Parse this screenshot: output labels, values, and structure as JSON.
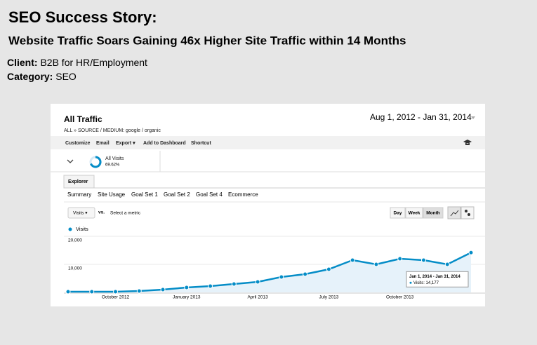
{
  "header": {
    "title": "SEO Success Story:",
    "subtitle": "Website Traffic Soars Gaining 46x Higher Site Traffic within 14 Months"
  },
  "details": [
    {
      "label": "Client:",
      "value": "B2B for HR/Employment"
    },
    {
      "label": "Category:",
      "value": "SEO"
    }
  ],
  "screenshot": {
    "title": "All Traffic",
    "date_range": "Aug 1, 2012 - Jan 31, 2014",
    "breadcrumb": "ALL » SOURCE / MEDIUM: google / organic",
    "toolbar": [
      "Customize",
      "Email",
      "Export ▾",
      "Add to Dashboard",
      "Shortcut"
    ],
    "segment": {
      "name": "All Visits",
      "share": "69.62%"
    },
    "tab": "Explorer",
    "subtabs": [
      "Summary",
      "Site Usage",
      "Goal Set 1",
      "Goal Set 2",
      "Goal Set 4",
      "Ecommerce"
    ],
    "metric": "Visits ▾",
    "vs": "vs.",
    "select_metric": "Select a metric",
    "periods": [
      "Day",
      "Week",
      "Month"
    ]
  },
  "chart_data": {
    "type": "line",
    "categories": [
      null,
      null,
      "October 2012",
      null,
      null,
      "January 2013",
      null,
      null,
      "April 2013",
      null,
      null,
      "July 2013",
      null,
      null,
      "October 2013",
      null,
      null,
      null
    ],
    "series": [
      {
        "name": "Visits",
        "color": "#058dc7",
        "values": [
          250,
          250,
          250,
          500,
          1000,
          1750,
          2250,
          3000,
          3750,
          5500,
          6500,
          8250,
          11500,
          10000,
          12000,
          11500,
          10000,
          14177
        ],
        "value_labels": [
          null,
          null,
          null,
          null,
          null,
          null,
          null,
          null,
          null,
          null,
          null,
          null,
          null,
          null,
          null,
          null,
          null,
          "Visits: 14,177"
        ]
      }
    ],
    "annotation": "Jan 1, 2014 - Jan 31, 2014",
    "ylim": [
      0,
      20000
    ],
    "yticks": [
      {
        "value": 10000,
        "label": "10,000"
      },
      {
        "value": 20000,
        "label": "20,000"
      }
    ],
    "grid": true
  }
}
